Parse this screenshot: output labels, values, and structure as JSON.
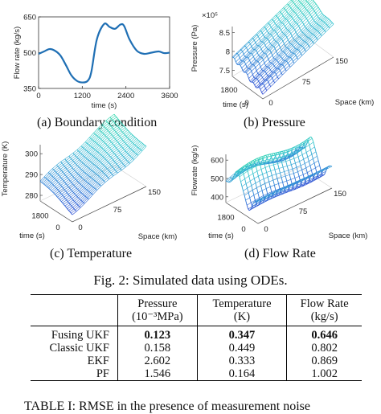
{
  "chart_data": [
    {
      "type": "line",
      "caption": "(a) Boundary condition",
      "xlabel": "time (s)",
      "ylabel": "Flow rate (kg/s)",
      "xlim": [
        0,
        3600
      ],
      "ylim": [
        350,
        650
      ],
      "xticks": [
        0,
        1200,
        2400,
        3600
      ],
      "yticks": [
        350,
        500,
        650
      ],
      "color": "#1f6fb4",
      "series": [
        {
          "x": [
            0,
            150,
            300,
            450,
            600,
            750,
            900,
            1050,
            1200,
            1350,
            1450,
            1600,
            1800,
            1950,
            2100,
            2250,
            2350,
            2500,
            2700,
            2900,
            3100,
            3300,
            3450,
            3600
          ],
          "y": [
            495,
            505,
            515,
            508,
            488,
            448,
            405,
            382,
            375,
            382,
            420,
            555,
            620,
            608,
            600,
            618,
            612,
            555,
            508,
            495,
            500,
            505,
            498,
            500
          ]
        }
      ]
    },
    {
      "type": "surface",
      "caption": "(b) Pressure",
      "zlabel": "Pressure (Pa)",
      "zexponent": "×10⁵",
      "zticks": [
        "7.5",
        "8",
        "8.5"
      ],
      "xlabel": "time (s)",
      "xticks": [
        "1800",
        "0"
      ],
      "ylabel": "Space (km)",
      "yticks": [
        "0",
        "75",
        "150"
      ],
      "colorscale": [
        "#2a2fcf",
        "#2f7fd8",
        "#33c3cf",
        "#33e0a0"
      ]
    },
    {
      "type": "surface",
      "caption": "(c) Temperature",
      "zlabel": "Temperature (K)",
      "zticks": [
        "280",
        "290",
        "300"
      ],
      "xlabel": "time (s)",
      "xticks": [
        "1800",
        "0"
      ],
      "ylabel": "Space (km)",
      "yticks": [
        "0",
        "75",
        "150"
      ],
      "colorscale": [
        "#2a2fcf",
        "#2f7fd8",
        "#33c3cf",
        "#33e0a0"
      ]
    },
    {
      "type": "surface",
      "caption": "(d) Flow Rate",
      "zlabel": "Flowrate (kg/s)",
      "zticks": [
        "400",
        "500",
        "600"
      ],
      "xlabel": "time (s)",
      "xticks": [
        "1800",
        "0"
      ],
      "ylabel": "Space (km)",
      "yticks": [
        "0",
        "75",
        "150"
      ],
      "colorscale": [
        "#2a2fcf",
        "#2f7fd8",
        "#33c3cf",
        "#33e0a0"
      ]
    }
  ],
  "figure_caption": "Fig. 2: Simulated data using ODEs.",
  "table": {
    "columns": [
      {
        "line1": "",
        "line2": ""
      },
      {
        "line1": "Pressure",
        "line2": "(10⁻³MPa)"
      },
      {
        "line1": "Temperature",
        "line2": "(K)"
      },
      {
        "line1": "Flow Rate",
        "line2": "(kg/s)"
      }
    ],
    "rows": [
      {
        "name": "Fusing UKF",
        "values": [
          "0.123",
          "0.347",
          "0.646"
        ],
        "bold": true
      },
      {
        "name": "Classic UKF",
        "values": [
          "0.158",
          "0.449",
          "0.802"
        ],
        "bold": false
      },
      {
        "name": "EKF",
        "values": [
          "2.602",
          "0.333",
          "0.869"
        ],
        "bold": false
      },
      {
        "name": "PF",
        "values": [
          "1.546",
          "0.164",
          "1.002"
        ],
        "bold": false
      }
    ],
    "caption": "TABLE I: RMSE in the presence of measurement noise"
  }
}
